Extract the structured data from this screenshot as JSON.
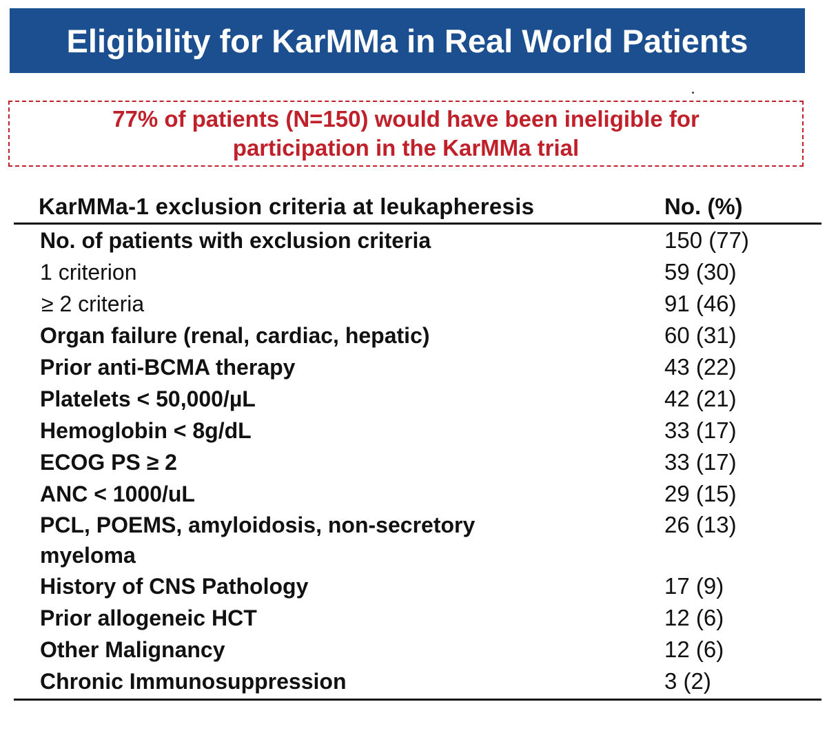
{
  "title": "Eligibility for KarMMa in Real World Patients",
  "callout": {
    "line1": "77% of patients (N=150) would have been ineligible for",
    "line2": "participation in the KarMMa trial"
  },
  "table": {
    "header_criteria": "KarMMa-1 exclusion criteria at leukapheresis",
    "header_number": "No. (%)",
    "rows": [
      {
        "criteria": "No. of patients with exclusion criteria",
        "number": "150 (77)",
        "bold": true
      },
      {
        "criteria": "1 criterion",
        "number": "59 (30)",
        "bold": false
      },
      {
        "criteria": "≥ 2 criteria",
        "number": "91 (46)",
        "bold": false
      },
      {
        "criteria": "Organ failure (renal, cardiac, hepatic)",
        "number": "60 (31)",
        "bold": true
      },
      {
        "criteria": "Prior anti-BCMA therapy",
        "number": "43 (22)",
        "bold": true
      },
      {
        "criteria": "Platelets < 50,000/µL",
        "number": "42 (21)",
        "bold": true
      },
      {
        "criteria": "Hemoglobin < 8g/dL",
        "number": "33 (17)",
        "bold": true
      },
      {
        "criteria": "ECOG PS ≥ 2",
        "number": "33 (17)",
        "bold": true
      },
      {
        "criteria": "ANC < 1000/uL",
        "number": "29 (15)",
        "bold": true
      },
      {
        "criteria": "PCL, POEMS, amyloidosis, non-secretory myeloma",
        "number": "26 (13)",
        "bold": true
      },
      {
        "criteria": "History of CNS Pathology",
        "number": "17 (9)",
        "bold": true
      },
      {
        "criteria": "Prior allogeneic HCT",
        "number": "12 (6)",
        "bold": true
      },
      {
        "criteria": "Other Malignancy",
        "number": "12 (6)",
        "bold": true
      },
      {
        "criteria": "Chronic Immunosuppression",
        "number": "3 (2)",
        "bold": true
      }
    ]
  },
  "colors": {
    "title_bar": "#1c4f8f",
    "callout_red": "#c0202a"
  }
}
